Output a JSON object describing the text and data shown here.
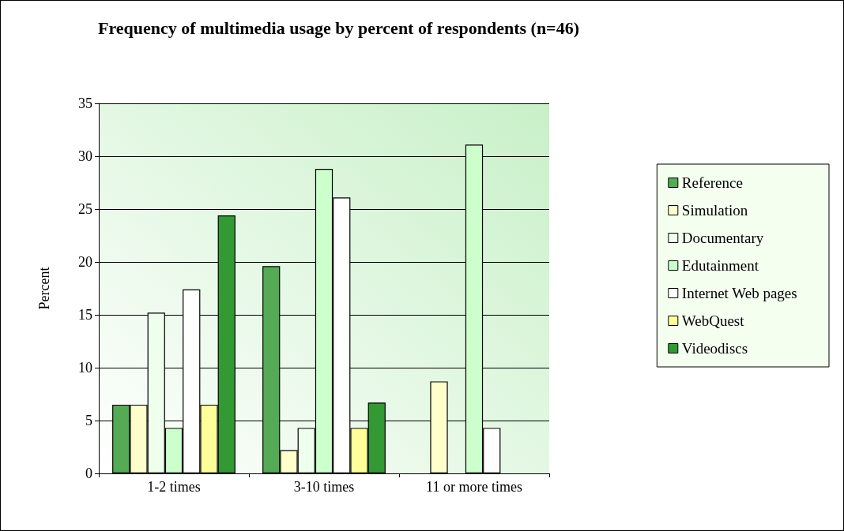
{
  "chart_data": {
    "type": "bar",
    "title": "Frequency of multimedia usage by percent of respondents (n=46)",
    "ylabel": "Percent",
    "categories": [
      "1-2 times",
      "3-10 times",
      "11 or more times"
    ],
    "series": [
      {
        "name": "Reference",
        "color": "#55aa55",
        "values": [
          6.5,
          19.6,
          null
        ]
      },
      {
        "name": "Simulation",
        "color": "#ffffcc",
        "values": [
          6.5,
          2.2,
          8.7
        ]
      },
      {
        "name": "Documentary",
        "color": "#eeffee",
        "values": [
          15.2,
          4.3,
          null
        ]
      },
      {
        "name": "Edutainment",
        "color": "#ccffcc",
        "values": [
          4.3,
          28.8,
          31.1
        ]
      },
      {
        "name": "Internet Web pages",
        "color": "#ffffff",
        "values": [
          17.4,
          26.1,
          4.3
        ]
      },
      {
        "name": "WebQuest",
        "color": "#ffff99",
        "values": [
          6.5,
          4.3,
          null
        ]
      },
      {
        "name": "Videodiscs",
        "color": "#339933",
        "values": [
          24.4,
          6.7,
          null
        ]
      }
    ],
    "ylim": [
      0,
      35
    ],
    "yticks": [
      0,
      5,
      10,
      15,
      20,
      25,
      30,
      35
    ],
    "grid": "y",
    "legend": "right"
  }
}
